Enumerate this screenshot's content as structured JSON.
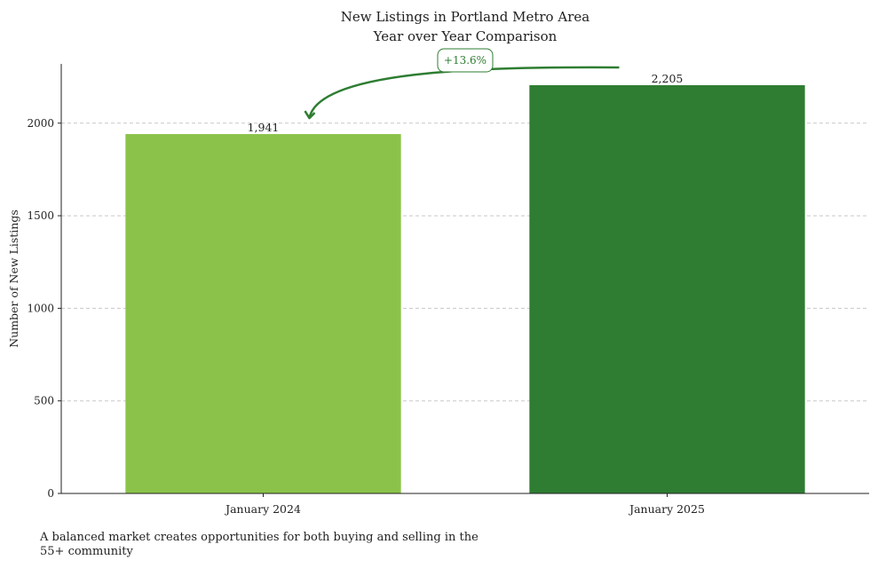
{
  "chart_data": {
    "type": "bar",
    "title_lines": [
      "New Listings in Portland Metro Area",
      "Year over Year Comparison"
    ],
    "categories": [
      "January 2024",
      "January 2025"
    ],
    "values": [
      1941,
      2205
    ],
    "value_labels": [
      "1,941",
      "2,205"
    ],
    "bar_colors": [
      "#8bc34a",
      "#2e7d32"
    ],
    "xlabel": "",
    "ylabel": "Number of New Listings",
    "ylim": [
      0,
      2320
    ],
    "yticks": [
      0,
      500,
      1000,
      1500,
      2000
    ],
    "grid": "horizontal dashed",
    "annotation": {
      "text": "+13.6%",
      "color": "#2e7d32"
    }
  },
  "footnote": "A balanced market creates opportunities for both buying and selling in the 55+ community"
}
